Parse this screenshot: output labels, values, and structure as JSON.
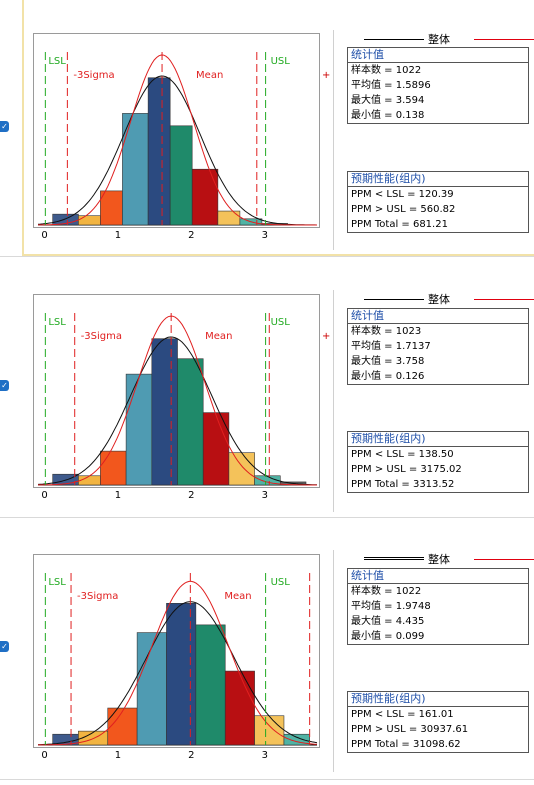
{
  "colors": {
    "bar_palette": [
      "#3e5a8c",
      "#f2b441",
      "#f2571d",
      "#4f9bb2",
      "#2b4a80",
      "#1f8a6a",
      "#b80f12",
      "#f4c25a",
      "#50b3a4",
      "#606060"
    ],
    "lsl_usl": "#22aa22",
    "sigma": "#e02020",
    "fit_overall": "#111111",
    "fit_within": "#e02020"
  },
  "legend": {
    "label": "整体"
  },
  "charts": [
    {
      "labels": {
        "lsl": "LSL",
        "usl": "USL",
        "sigma": "-3Sigma",
        "mean": "Mean"
      },
      "plus": "+",
      "x_ticks": [
        "0",
        "1",
        "2",
        "3"
      ],
      "stats": {
        "title": "统计值",
        "rows": [
          "样本数 = 1022",
          "平均值 = 1.5896",
          "最大值 = 3.594",
          "最小值 = 0.138"
        ]
      },
      "ppm": {
        "title": "预期性能(组内)",
        "rows": [
          "PPM < LSL = 120.39",
          "PPM > USL = 560.82",
          "PPM Total = 681.21"
        ]
      }
    },
    {
      "labels": {
        "lsl": "LSL",
        "usl": "USL",
        "sigma": "-3Sigma",
        "mean": "Mean"
      },
      "plus": "+",
      "x_ticks": [
        "0",
        "1",
        "2",
        "3"
      ],
      "stats": {
        "title": "统计值",
        "rows": [
          "样本数 = 1023",
          "平均值 = 1.7137",
          "最大值 = 3.758",
          "最小值 = 0.126"
        ]
      },
      "ppm": {
        "title": "预期性能(组内)",
        "rows": [
          "PPM < LSL = 138.50",
          "PPM > USL = 3175.02",
          "PPM Total = 3313.52"
        ]
      }
    },
    {
      "labels": {
        "lsl": "LSL",
        "usl": "USL",
        "sigma": "-3Sigma",
        "mean": "Mean"
      },
      "plus": "",
      "x_ticks": [
        "0",
        "1",
        "2",
        "3"
      ],
      "stats": {
        "title": "统计值",
        "rows": [
          "样本数 = 1022",
          "平均值 = 1.9748",
          "最大值 = 4.435",
          "最小值 = 0.099"
        ]
      },
      "ppm": {
        "title": "预期性能(组内)",
        "rows": [
          "PPM < LSL = 161.01",
          "PPM > USL = 30937.61",
          "PPM Total = 31098.62"
        ]
      }
    }
  ],
  "chart_data": [
    {
      "type": "bar",
      "xlim": [
        -0.1,
        3.7
      ],
      "ylim": [
        0,
        1
      ],
      "lsl": 0.0,
      "usl": 3.0,
      "minus3sigma": 0.3,
      "mean": 1.5896,
      "plus3sigma": 2.88,
      "bin_edges": [
        0.1,
        0.45,
        0.75,
        1.05,
        1.4,
        1.7,
        2.0,
        2.35,
        2.65,
        2.95,
        3.3
      ],
      "values": [
        0.07,
        0.06,
        0.22,
        0.72,
        0.95,
        0.64,
        0.36,
        0.09,
        0.04,
        0.01
      ],
      "fit": {
        "mean": 1.5896,
        "sigma_overall": 0.52,
        "sigma_within": 0.43
      }
    },
    {
      "type": "bar",
      "xlim": [
        -0.1,
        3.7
      ],
      "ylim": [
        0,
        1
      ],
      "lsl": 0.0,
      "usl": 3.0,
      "minus3sigma": 0.4,
      "mean": 1.7137,
      "plus3sigma": 3.05,
      "bin_edges": [
        0.1,
        0.45,
        0.75,
        1.1,
        1.45,
        1.8,
        2.15,
        2.5,
        2.85,
        3.2,
        3.55
      ],
      "values": [
        0.07,
        0.06,
        0.22,
        0.72,
        0.95,
        0.82,
        0.47,
        0.21,
        0.06,
        0.02
      ],
      "fit": {
        "mean": 1.7137,
        "sigma_overall": 0.55,
        "sigma_within": 0.46
      }
    },
    {
      "type": "bar",
      "xlim": [
        -0.1,
        3.7
      ],
      "ylim": [
        0,
        1
      ],
      "lsl": 0.0,
      "usl": 3.0,
      "minus3sigma": 0.35,
      "mean": 1.9748,
      "plus3sigma": 3.6,
      "bin_edges": [
        0.1,
        0.45,
        0.85,
        1.25,
        1.65,
        2.05,
        2.45,
        2.85,
        3.25,
        3.6
      ],
      "values": [
        0.07,
        0.09,
        0.24,
        0.73,
        0.92,
        0.78,
        0.48,
        0.19,
        0.07
      ],
      "fit": {
        "mean": 1.9748,
        "sigma_overall": 0.6,
        "sigma_within": 0.52
      }
    }
  ]
}
